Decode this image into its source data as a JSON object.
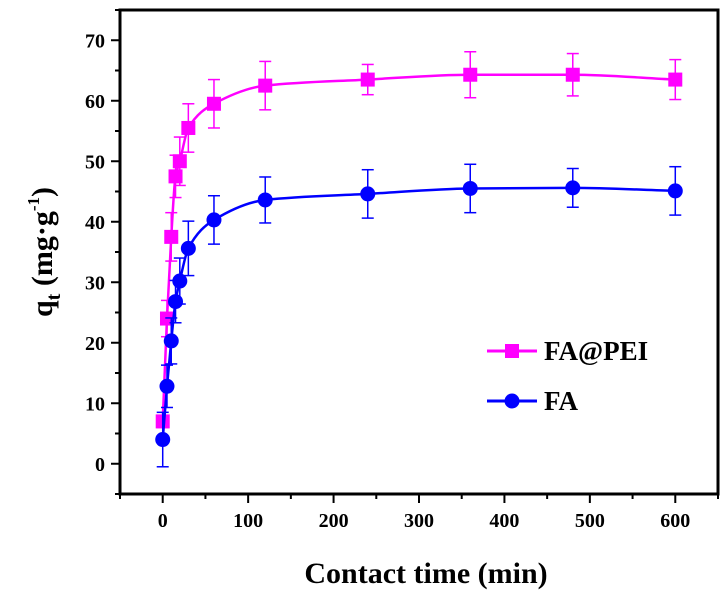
{
  "chart_data": {
    "type": "line",
    "title": "",
    "xlabel": "Contact time (min)",
    "ylabel": {
      "main": "q",
      "sub": "t",
      "unit": " (mg·g",
      "sup": "-1",
      "close": ")"
    },
    "xlim": [
      -50,
      650
    ],
    "ylim": [
      -5,
      75
    ],
    "xticks": [
      0,
      100,
      200,
      300,
      400,
      500,
      600
    ],
    "yticks": [
      0,
      10,
      20,
      30,
      40,
      50,
      60,
      70
    ],
    "grid": false,
    "legend_position": "lower-right",
    "series": [
      {
        "name": "FA@PEI",
        "color": "#ff00ff",
        "marker": "square",
        "x": [
          0,
          5,
          10,
          15,
          20,
          30,
          60,
          120,
          240,
          360,
          480,
          600
        ],
        "y": [
          7,
          24,
          37.5,
          47.5,
          50,
          55.5,
          59.5,
          62.5,
          63.5,
          64.3,
          64.3,
          63.5
        ],
        "err": [
          1,
          3,
          4,
          3.5,
          4,
          4,
          4,
          4,
          2.5,
          3.8,
          3.5,
          3.3
        ]
      },
      {
        "name": "FA",
        "color": "#0000ff",
        "marker": "circle",
        "x": [
          0,
          5,
          10,
          15,
          20,
          30,
          60,
          120,
          240,
          360,
          480,
          600
        ],
        "y": [
          4,
          12.8,
          20.3,
          26.8,
          30.2,
          35.6,
          40.3,
          43.6,
          44.6,
          45.5,
          45.6,
          45.1
        ],
        "err": [
          4.5,
          3.5,
          3.8,
          3.5,
          3.8,
          4.5,
          4,
          3.8,
          4,
          4,
          3.2,
          4
        ]
      }
    ]
  }
}
